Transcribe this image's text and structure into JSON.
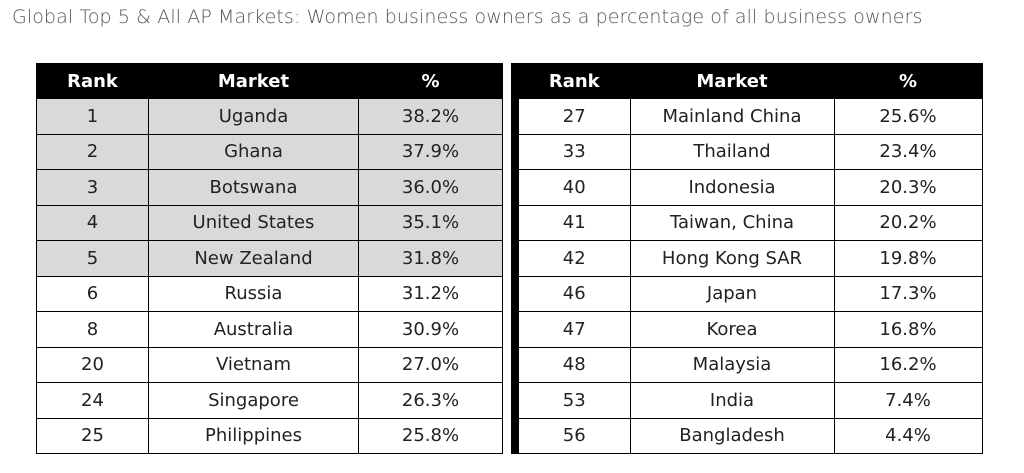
{
  "title": "Global Top 5 & All AP Markets: Women business owners as a percentage of all business owners",
  "tables": [
    {
      "header": [
        "Rank",
        "Market",
        "%"
      ],
      "rows": [
        [
          "1",
          "Uganda",
          "38.2%"
        ],
        [
          "2",
          "Ghana",
          "37.9%"
        ],
        [
          "3",
          "Botswana",
          "36.0%"
        ],
        [
          "4",
          "United States",
          "35.1%"
        ],
        [
          "5",
          "New Zealand",
          "31.8%"
        ],
        [
          "6",
          "Russia",
          "31.2%"
        ],
        [
          "8",
          "Australia",
          "30.9%"
        ],
        [
          "20",
          "Vietnam",
          "27.0%"
        ],
        [
          "24",
          "Singapore",
          "26.3%"
        ],
        [
          "25",
          "Philippines",
          "25.8%"
        ]
      ]
    },
    {
      "header": [
        "Rank",
        "Market",
        "%"
      ],
      "rows": [
        [
          "27",
          "Mainland China",
          "25.6%"
        ],
        [
          "33",
          "Thailand",
          "23.4%"
        ],
        [
          "40",
          "Indonesia",
          "20.3%"
        ],
        [
          "41",
          "Taiwan, China",
          "20.2%"
        ],
        [
          "42",
          "Hong Kong SAR",
          "19.8%"
        ],
        [
          "46",
          "Japan",
          "17.3%"
        ],
        [
          "47",
          "Korea",
          "16.8%"
        ],
        [
          "48",
          "Malaysia",
          "16.2%"
        ],
        [
          "53",
          "India",
          "7.4%"
        ],
        [
          "56",
          "Bangladesh",
          "4.4%"
        ]
      ]
    }
  ]
}
